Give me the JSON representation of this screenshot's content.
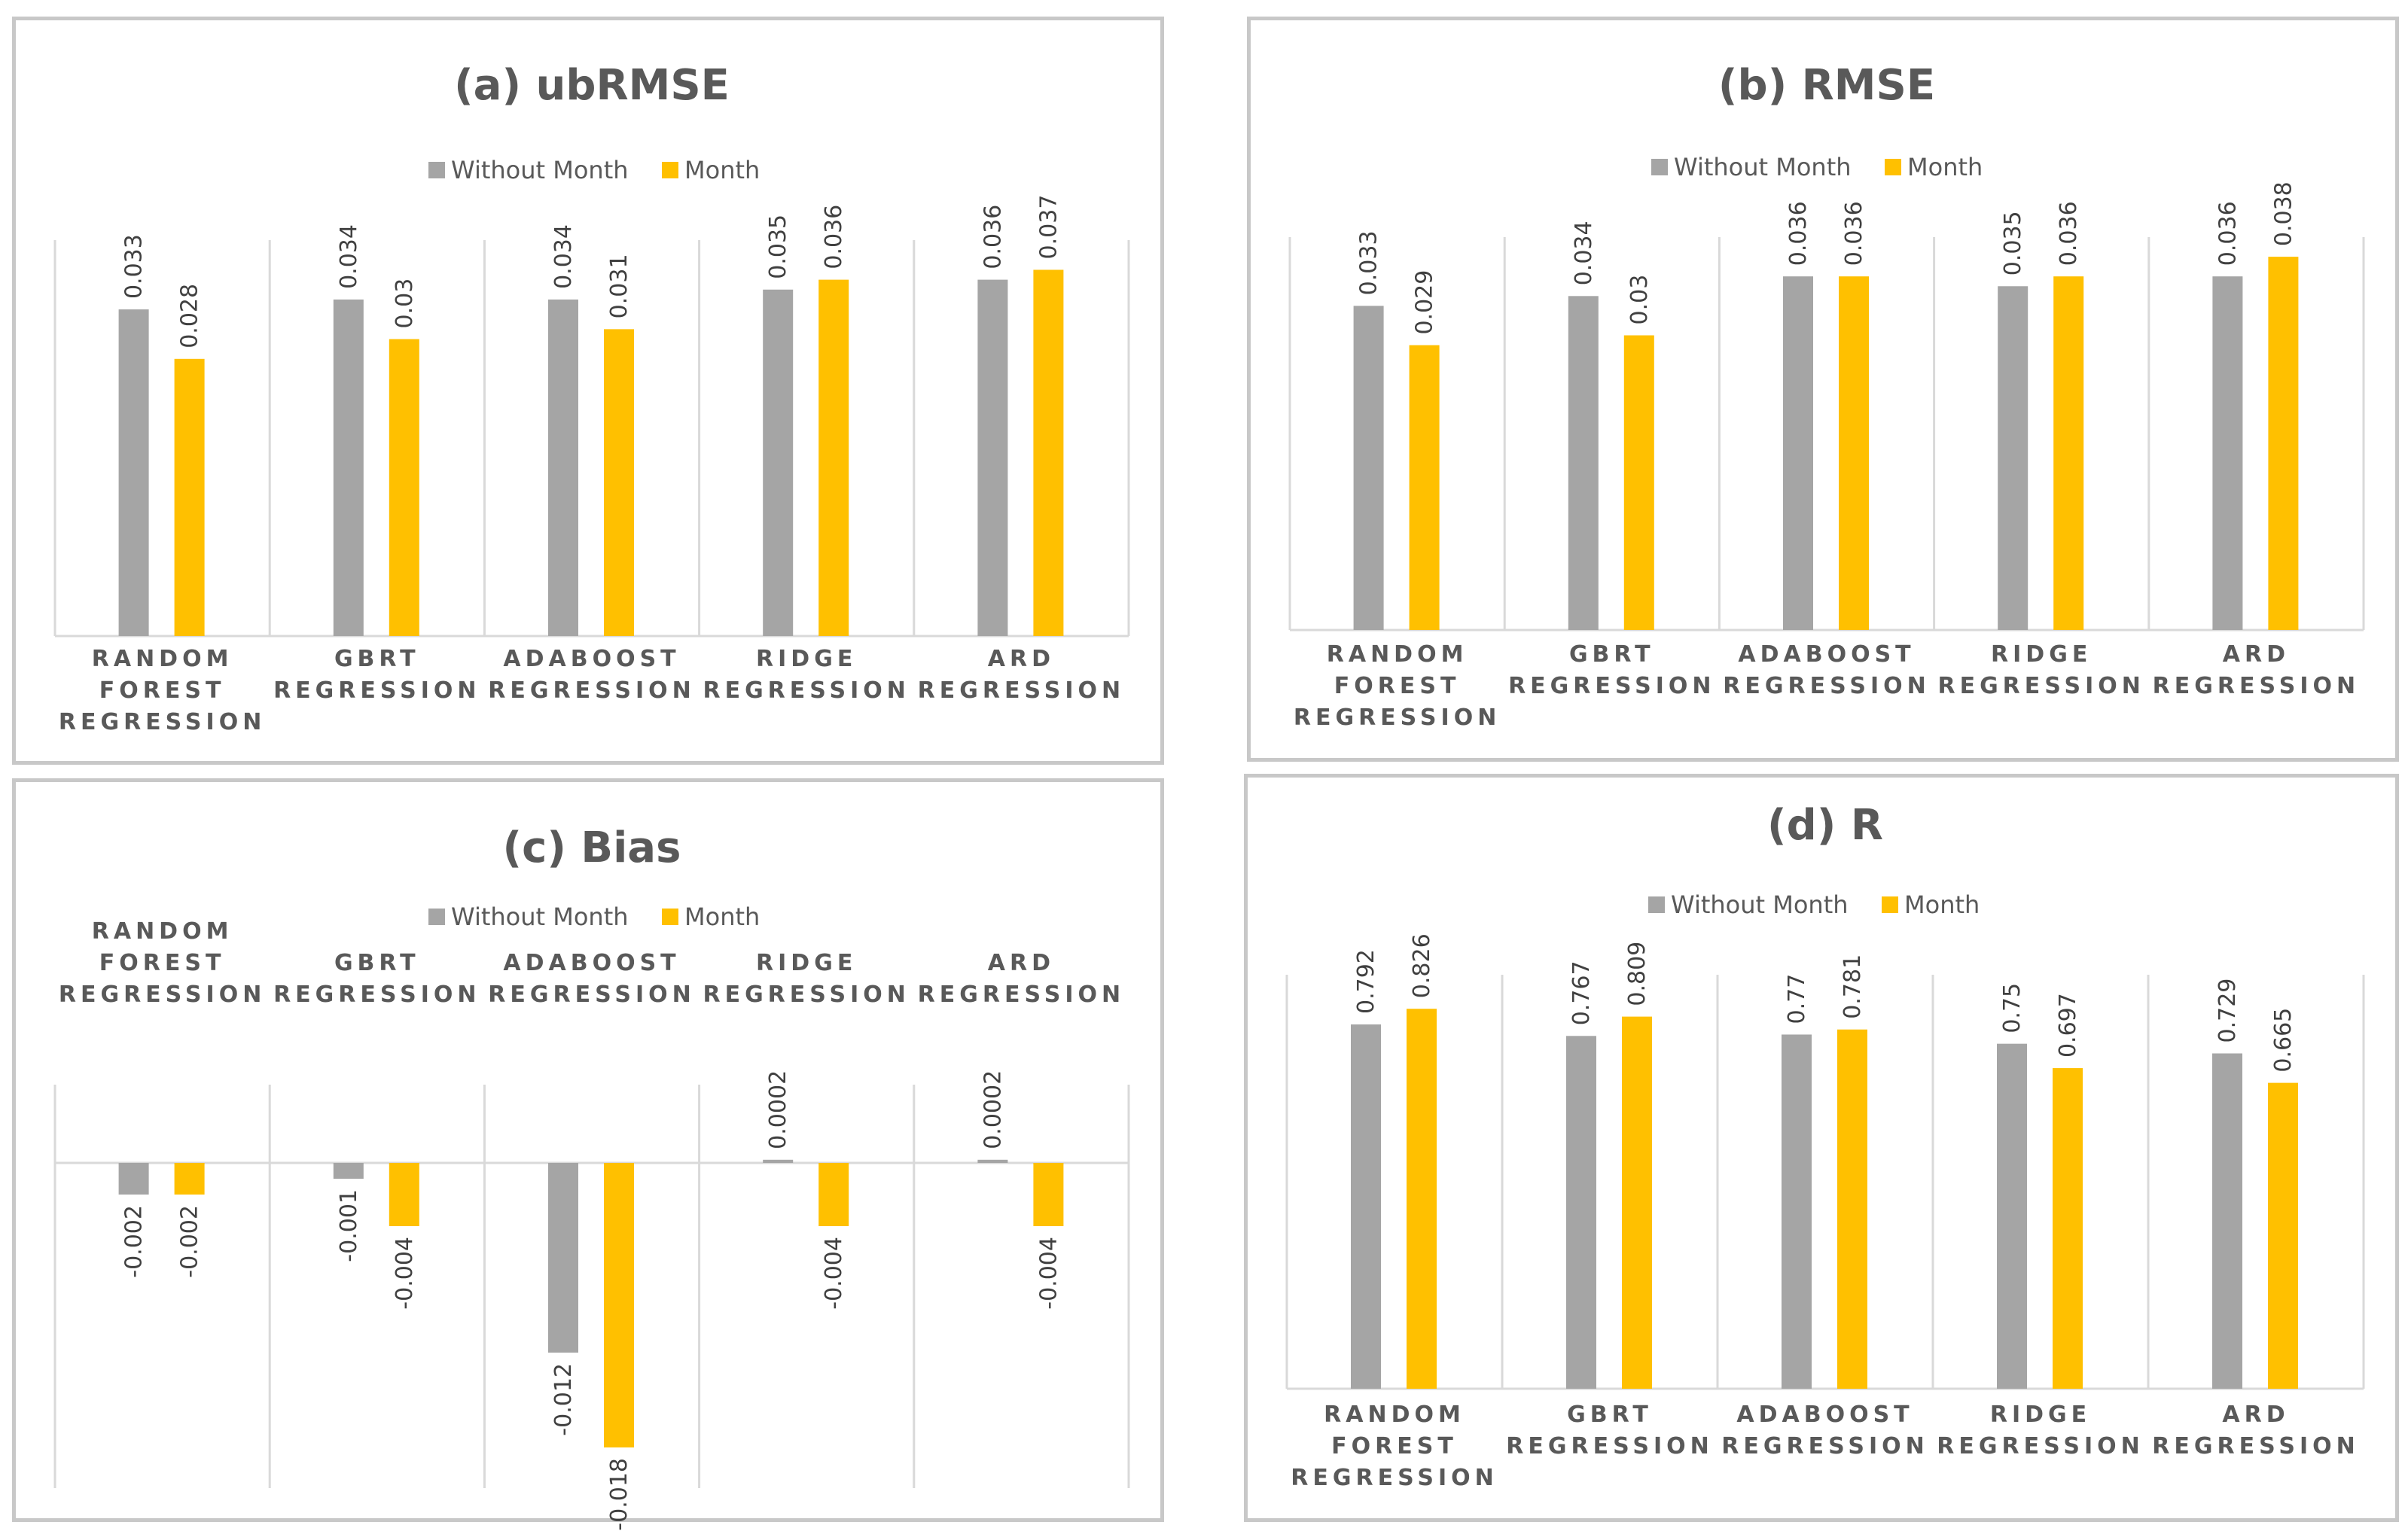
{
  "colors": {
    "without_month": "#a5a5a5",
    "month": "#ffc000",
    "axis": "#d9d9d9",
    "text": "#595959"
  },
  "legend": [
    "Without Month",
    "Month"
  ],
  "chart_data": [
    {
      "type": "bar",
      "title": "(a)  ubRMSE",
      "categories": [
        [
          "RANDOM",
          "FOREST",
          "REGRESSION"
        ],
        [
          "GBRT",
          "REGRESSION"
        ],
        [
          "ADABOOST",
          "REGRESSION"
        ],
        [
          "RIDGE",
          "REGRESSION"
        ],
        [
          "ARD",
          "REGRESSION"
        ]
      ],
      "series": [
        {
          "name": "Without Month",
          "values": [
            0.033,
            0.034,
            0.034,
            0.035,
            0.036
          ],
          "labels": [
            "0.033",
            "0.034",
            "0.034",
            "0.035",
            "0.036"
          ]
        },
        {
          "name": "Month",
          "values": [
            0.028,
            0.03,
            0.031,
            0.036,
            0.037
          ],
          "labels": [
            "0.028",
            "0.03",
            "0.031",
            "0.036",
            "0.037"
          ]
        }
      ],
      "ylim": [
        0,
        0.04
      ],
      "category_position": "bottom"
    },
    {
      "type": "bar",
      "title": "(b)  RMSE",
      "categories": [
        [
          "RANDOM",
          "FOREST",
          "REGRESSION"
        ],
        [
          "GBRT",
          "REGRESSION"
        ],
        [
          "ADABOOST",
          "REGRESSION"
        ],
        [
          "RIDGE",
          "REGRESSION"
        ],
        [
          "ARD",
          "REGRESSION"
        ]
      ],
      "series": [
        {
          "name": "Without Month",
          "values": [
            0.033,
            0.034,
            0.036,
            0.035,
            0.036
          ],
          "labels": [
            "0.033",
            "0.034",
            "0.036",
            "0.035",
            "0.036"
          ]
        },
        {
          "name": "Month",
          "values": [
            0.029,
            0.03,
            0.036,
            0.036,
            0.038
          ],
          "labels": [
            "0.029",
            "0.03",
            "0.036",
            "0.036",
            "0.038"
          ]
        }
      ],
      "ylim": [
        0,
        0.04
      ],
      "category_position": "bottom"
    },
    {
      "type": "bar",
      "title": "(c)  Bias",
      "categories": [
        [
          "RANDOM",
          "FOREST",
          "REGRESSION"
        ],
        [
          "GBRT",
          "REGRESSION"
        ],
        [
          "ADABOOST",
          "REGRESSION"
        ],
        [
          "RIDGE",
          "REGRESSION"
        ],
        [
          "ARD",
          "REGRESSION"
        ]
      ],
      "series": [
        {
          "name": "Without Month",
          "values": [
            -0.002,
            -0.001,
            -0.012,
            0.0002,
            0.0002
          ],
          "labels": [
            "-0.002",
            "-0.001",
            "-0.012",
            "0.0002",
            "0.0002"
          ]
        },
        {
          "name": "Month",
          "values": [
            -0.002,
            -0.004,
            -0.018,
            -0.004,
            -0.004
          ],
          "labels": [
            "-0.002",
            "-0.004",
            "-0.018",
            "-0.004",
            "-0.004"
          ]
        }
      ],
      "ylim": [
        -0.02,
        0.005
      ],
      "category_position": "top"
    },
    {
      "type": "bar",
      "title": "(d)  R",
      "categories": [
        [
          "RANDOM",
          "FOREST",
          "REGRESSION"
        ],
        [
          "GBRT",
          "REGRESSION"
        ],
        [
          "ADABOOST",
          "REGRESSION"
        ],
        [
          "RIDGE",
          "REGRESSION"
        ],
        [
          "ARD",
          "REGRESSION"
        ]
      ],
      "series": [
        {
          "name": "Without Month",
          "values": [
            0.792,
            0.767,
            0.77,
            0.75,
            0.729
          ],
          "labels": [
            "0.792",
            "0.767",
            "0.77",
            "0.75",
            "0.729"
          ]
        },
        {
          "name": "Month",
          "values": [
            0.826,
            0.809,
            0.781,
            0.697,
            0.665
          ],
          "labels": [
            "0.826",
            "0.809",
            "0.781",
            "0.697",
            "0.665"
          ]
        }
      ],
      "ylim": [
        0,
        0.9
      ],
      "category_position": "bottom"
    }
  ]
}
